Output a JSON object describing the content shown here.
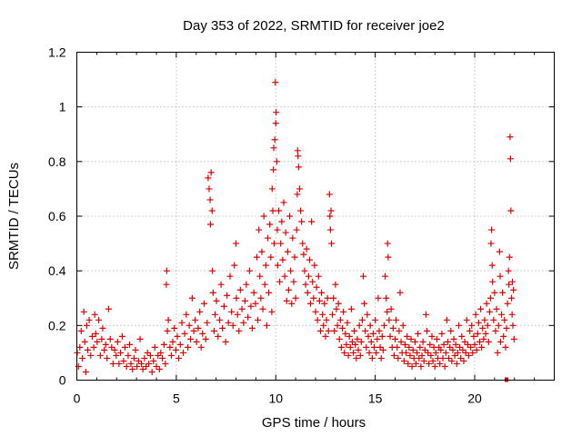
{
  "chart_data": {
    "type": "scatter",
    "title": "Day 353 of 2022, SRMTID for receiver joe2",
    "xlabel": "GPS time / hours",
    "ylabel": "SRMTID / TECUs",
    "xlim": [
      0,
      24
    ],
    "ylim": [
      0,
      1.2
    ],
    "xticks": [
      0,
      5,
      10,
      15,
      20
    ],
    "xtick_labels": [
      "0",
      "5",
      "10",
      "15",
      "20"
    ],
    "yticks": [
      0,
      0.2,
      0.4,
      0.6,
      0.8,
      1.0,
      1.2
    ],
    "ytick_labels": [
      "0",
      "0.2",
      "0.4",
      "0.6",
      "0.8",
      "1",
      "1.2"
    ],
    "grid": true,
    "marker": "+",
    "color": "#e00000",
    "points": [
      [
        0.02,
        0.1
      ],
      [
        0.08,
        0.05
      ],
      [
        0.15,
        0.12
      ],
      [
        0.22,
        0.18
      ],
      [
        0.28,
        0.08
      ],
      [
        0.35,
        0.25
      ],
      [
        0.4,
        0.14
      ],
      [
        0.45,
        0.03
      ],
      [
        0.5,
        0.2
      ],
      [
        0.55,
        0.11
      ],
      [
        0.62,
        0.22
      ],
      [
        0.7,
        0.09
      ],
      [
        0.78,
        0.16
      ],
      [
        0.85,
        0.12
      ],
      [
        0.9,
        0.24
      ],
      [
        0.95,
        0.17
      ],
      [
        1.02,
        0.14
      ],
      [
        1.1,
        0.22
      ],
      [
        1.18,
        0.09
      ],
      [
        1.25,
        0.15
      ],
      [
        1.3,
        0.19
      ],
      [
        1.38,
        0.11
      ],
      [
        1.45,
        0.13
      ],
      [
        1.52,
        0.08
      ],
      [
        1.6,
        0.26
      ],
      [
        1.68,
        0.15
      ],
      [
        1.75,
        0.12
      ],
      [
        1.82,
        0.06
      ],
      [
        1.9,
        0.11
      ],
      [
        1.98,
        0.09
      ],
      [
        2.05,
        0.14
      ],
      [
        2.12,
        0.06
      ],
      [
        2.2,
        0.1
      ],
      [
        2.28,
        0.16
      ],
      [
        2.35,
        0.07
      ],
      [
        2.42,
        0.12
      ],
      [
        2.5,
        0.05
      ],
      [
        2.58,
        0.09
      ],
      [
        2.65,
        0.13
      ],
      [
        2.72,
        0.06
      ],
      [
        2.8,
        0.04
      ],
      [
        2.88,
        0.08
      ],
      [
        2.95,
        0.11
      ],
      [
        3.02,
        0.05
      ],
      [
        3.1,
        0.07
      ],
      [
        3.18,
        0.15
      ],
      [
        3.25,
        0.06
      ],
      [
        3.32,
        0.04
      ],
      [
        3.4,
        0.08
      ],
      [
        3.48,
        0.05
      ],
      [
        3.55,
        0.1
      ],
      [
        3.62,
        0.06
      ],
      [
        3.7,
        0.09
      ],
      [
        3.78,
        0.03
      ],
      [
        3.85,
        0.07
      ],
      [
        3.92,
        0.12
      ],
      [
        4.0,
        0.05
      ],
      [
        4.08,
        0.09
      ],
      [
        4.15,
        0.04
      ],
      [
        4.22,
        0.1
      ],
      [
        4.3,
        0.08
      ],
      [
        4.38,
        0.13
      ],
      [
        4.45,
        0.06
      ],
      [
        4.5,
        0.35
      ],
      [
        4.52,
        0.4
      ],
      [
        4.55,
        0.18
      ],
      [
        4.6,
        0.22
      ],
      [
        4.68,
        0.12
      ],
      [
        4.75,
        0.09
      ],
      [
        4.82,
        0.14
      ],
      [
        4.9,
        0.19
      ],
      [
        4.98,
        0.11
      ],
      [
        5.05,
        0.16
      ],
      [
        5.12,
        0.08
      ],
      [
        5.2,
        0.13
      ],
      [
        5.28,
        0.21
      ],
      [
        5.35,
        0.1
      ],
      [
        5.42,
        0.17
      ],
      [
        5.5,
        0.24
      ],
      [
        5.58,
        0.12
      ],
      [
        5.65,
        0.2
      ],
      [
        5.72,
        0.15
      ],
      [
        5.8,
        0.3
      ],
      [
        5.88,
        0.18
      ],
      [
        5.95,
        0.22
      ],
      [
        6.02,
        0.14
      ],
      [
        6.1,
        0.19
      ],
      [
        6.18,
        0.25
      ],
      [
        6.25,
        0.12
      ],
      [
        6.32,
        0.17
      ],
      [
        6.4,
        0.28
      ],
      [
        6.48,
        0.15
      ],
      [
        6.55,
        0.21
      ],
      [
        6.6,
        0.74
      ],
      [
        6.65,
        0.7
      ],
      [
        6.7,
        0.66
      ],
      [
        6.72,
        0.57
      ],
      [
        6.75,
        0.76
      ],
      [
        6.8,
        0.62
      ],
      [
        6.82,
        0.4
      ],
      [
        6.85,
        0.32
      ],
      [
        6.9,
        0.18
      ],
      [
        6.95,
        0.24
      ],
      [
        7.02,
        0.29
      ],
      [
        7.1,
        0.16
      ],
      [
        7.18,
        0.22
      ],
      [
        7.25,
        0.35
      ],
      [
        7.32,
        0.19
      ],
      [
        7.4,
        0.27
      ],
      [
        7.48,
        0.14
      ],
      [
        7.55,
        0.31
      ],
      [
        7.62,
        0.21
      ],
      [
        7.7,
        0.38
      ],
      [
        7.78,
        0.25
      ],
      [
        7.85,
        0.2
      ],
      [
        7.92,
        0.42
      ],
      [
        8.0,
        0.5
      ],
      [
        8.02,
        0.3
      ],
      [
        8.08,
        0.24
      ],
      [
        8.15,
        0.18
      ],
      [
        8.22,
        0.33
      ],
      [
        8.3,
        0.26
      ],
      [
        8.38,
        0.21
      ],
      [
        8.45,
        0.29
      ],
      [
        8.52,
        0.35
      ],
      [
        8.6,
        0.23
      ],
      [
        8.68,
        0.4
      ],
      [
        8.75,
        0.27
      ],
      [
        8.82,
        0.19
      ],
      [
        8.9,
        0.32
      ],
      [
        8.98,
        0.28
      ],
      [
        9.05,
        0.45
      ],
      [
        9.1,
        0.22
      ],
      [
        9.15,
        0.55
      ],
      [
        9.2,
        0.38
      ],
      [
        9.25,
        0.3
      ],
      [
        9.3,
        0.47
      ],
      [
        9.35,
        0.26
      ],
      [
        9.4,
        0.6
      ],
      [
        9.45,
        0.35
      ],
      [
        9.5,
        0.42
      ],
      [
        9.55,
        0.2
      ],
      [
        9.6,
        0.52
      ],
      [
        9.65,
        0.32
      ],
      [
        9.7,
        0.57
      ],
      [
        9.75,
        0.45
      ],
      [
        9.8,
        0.25
      ],
      [
        9.82,
        0.7
      ],
      [
        9.85,
        0.62
      ],
      [
        9.88,
        0.77
      ],
      [
        9.9,
        0.85
      ],
      [
        9.92,
        0.5
      ],
      [
        9.95,
        0.88
      ],
      [
        9.98,
        1.09
      ],
      [
        10.0,
        0.94
      ],
      [
        10.02,
        0.98
      ],
      [
        10.05,
        0.8
      ],
      [
        10.08,
        0.55
      ],
      [
        10.1,
        0.42
      ],
      [
        10.15,
        0.62
      ],
      [
        10.2,
        0.36
      ],
      [
        10.25,
        0.5
      ],
      [
        10.3,
        0.58
      ],
      [
        10.35,
        0.44
      ],
      [
        10.4,
        0.65
      ],
      [
        10.45,
        0.38
      ],
      [
        10.5,
        0.54
      ],
      [
        10.55,
        0.29
      ],
      [
        10.6,
        0.47
      ],
      [
        10.65,
        0.33
      ],
      [
        10.7,
        0.6
      ],
      [
        10.75,
        0.4
      ],
      [
        10.8,
        0.28
      ],
      [
        10.85,
        0.52
      ],
      [
        10.9,
        0.36
      ],
      [
        10.95,
        0.45
      ],
      [
        11.0,
        0.3
      ],
      [
        11.05,
        0.55
      ],
      [
        11.08,
        0.68
      ],
      [
        11.1,
        0.84
      ],
      [
        11.12,
        0.82
      ],
      [
        11.15,
        0.78
      ],
      [
        11.2,
        0.7
      ],
      [
        11.25,
        0.62
      ],
      [
        11.3,
        0.58
      ],
      [
        11.35,
        0.5
      ],
      [
        11.4,
        0.46
      ],
      [
        11.45,
        0.4
      ],
      [
        11.5,
        0.35
      ],
      [
        11.55,
        0.48
      ],
      [
        11.6,
        0.32
      ],
      [
        11.65,
        0.38
      ],
      [
        11.7,
        0.44
      ],
      [
        11.75,
        0.28
      ],
      [
        11.8,
        0.58
      ],
      [
        11.85,
        0.36
      ],
      [
        11.9,
        0.3
      ],
      [
        11.95,
        0.42
      ],
      [
        12.0,
        0.25
      ],
      [
        12.05,
        0.34
      ],
      [
        12.1,
        0.22
      ],
      [
        12.15,
        0.38
      ],
      [
        12.2,
        0.29
      ],
      [
        12.25,
        0.18
      ],
      [
        12.3,
        0.32
      ],
      [
        12.35,
        0.24
      ],
      [
        12.4,
        0.2
      ],
      [
        12.45,
        0.28
      ],
      [
        12.5,
        0.16
      ],
      [
        12.55,
        0.22
      ],
      [
        12.6,
        0.3
      ],
      [
        12.65,
        0.18
      ],
      [
        12.7,
        0.68
      ],
      [
        12.72,
        0.6
      ],
      [
        12.75,
        0.55
      ],
      [
        12.78,
        0.62
      ],
      [
        12.8,
        0.5
      ],
      [
        12.85,
        0.24
      ],
      [
        12.9,
        0.3
      ],
      [
        12.95,
        0.18
      ],
      [
        13.0,
        0.35
      ],
      [
        13.05,
        0.26
      ],
      [
        13.1,
        0.2
      ],
      [
        13.15,
        0.28
      ],
      [
        13.2,
        0.15
      ],
      [
        13.25,
        0.22
      ],
      [
        13.3,
        0.12
      ],
      [
        13.35,
        0.19
      ],
      [
        13.4,
        0.25
      ],
      [
        13.45,
        0.1
      ],
      [
        13.5,
        0.17
      ],
      [
        13.55,
        0.13
      ],
      [
        13.6,
        0.21
      ],
      [
        13.65,
        0.09
      ],
      [
        13.7,
        0.16
      ],
      [
        13.75,
        0.12
      ],
      [
        13.8,
        0.26
      ],
      [
        13.85,
        0.14
      ],
      [
        13.9,
        0.1
      ],
      [
        13.95,
        0.18
      ],
      [
        14.0,
        0.13
      ],
      [
        14.05,
        0.08
      ],
      [
        14.1,
        0.15
      ],
      [
        14.15,
        0.11
      ],
      [
        14.2,
        0.2
      ],
      [
        14.25,
        0.09
      ],
      [
        14.3,
        0.14
      ],
      [
        14.35,
        0.22
      ],
      [
        14.4,
        0.38
      ],
      [
        14.45,
        0.28
      ],
      [
        14.5,
        0.18
      ],
      [
        14.55,
        0.12
      ],
      [
        14.6,
        0.24
      ],
      [
        14.65,
        0.16
      ],
      [
        14.7,
        0.1
      ],
      [
        14.75,
        0.2
      ],
      [
        14.8,
        0.14
      ],
      [
        14.85,
        0.08
      ],
      [
        14.9,
        0.17
      ],
      [
        14.95,
        0.12
      ],
      [
        15.0,
        0.22
      ],
      [
        15.05,
        0.1
      ],
      [
        15.1,
        0.15
      ],
      [
        15.15,
        0.3
      ],
      [
        15.2,
        0.18
      ],
      [
        15.25,
        0.12
      ],
      [
        15.3,
        0.08
      ],
      [
        15.35,
        0.16
      ],
      [
        15.4,
        0.11
      ],
      [
        15.45,
        0.2
      ],
      [
        15.5,
        0.38
      ],
      [
        15.55,
        0.3
      ],
      [
        15.6,
        0.25
      ],
      [
        15.62,
        0.5
      ],
      [
        15.65,
        0.45
      ],
      [
        15.7,
        0.22
      ],
      [
        15.75,
        0.16
      ],
      [
        15.8,
        0.26
      ],
      [
        15.85,
        0.12
      ],
      [
        15.9,
        0.19
      ],
      [
        15.95,
        0.09
      ],
      [
        16.0,
        0.15
      ],
      [
        16.05,
        0.22
      ],
      [
        16.1,
        0.12
      ],
      [
        16.15,
        0.08
      ],
      [
        16.2,
        0.18
      ],
      [
        16.25,
        0.32
      ],
      [
        16.3,
        0.14
      ],
      [
        16.35,
        0.1
      ],
      [
        16.4,
        0.2
      ],
      [
        16.45,
        0.07
      ],
      [
        16.5,
        0.13
      ],
      [
        16.55,
        0.1
      ],
      [
        16.6,
        0.16
      ],
      [
        16.65,
        0.06
      ],
      [
        16.7,
        0.12
      ],
      [
        16.75,
        0.09
      ],
      [
        16.8,
        0.15
      ],
      [
        16.85,
        0.05
      ],
      [
        16.9,
        0.11
      ],
      [
        16.95,
        0.08
      ],
      [
        17.0,
        0.14
      ],
      [
        17.05,
        0.06
      ],
      [
        17.1,
        0.1
      ],
      [
        17.15,
        0.17
      ],
      [
        17.2,
        0.08
      ],
      [
        17.25,
        0.12
      ],
      [
        17.3,
        0.05
      ],
      [
        17.35,
        0.09
      ],
      [
        17.4,
        0.14
      ],
      [
        17.45,
        0.07
      ],
      [
        17.5,
        0.11
      ],
      [
        17.55,
        0.24
      ],
      [
        17.6,
        0.18
      ],
      [
        17.65,
        0.1
      ],
      [
        17.7,
        0.06
      ],
      [
        17.75,
        0.13
      ],
      [
        17.8,
        0.09
      ],
      [
        17.85,
        0.16
      ],
      [
        17.9,
        0.07
      ],
      [
        17.95,
        0.12
      ],
      [
        18.0,
        0.05
      ],
      [
        18.05,
        0.1
      ],
      [
        18.1,
        0.15
      ],
      [
        18.15,
        0.08
      ],
      [
        18.2,
        0.12
      ],
      [
        18.25,
        0.06
      ],
      [
        18.3,
        0.11
      ],
      [
        18.35,
        0.17
      ],
      [
        18.4,
        0.08
      ],
      [
        18.45,
        0.13
      ],
      [
        18.5,
        0.05
      ],
      [
        18.55,
        0.1
      ],
      [
        18.6,
        0.22
      ],
      [
        18.65,
        0.14
      ],
      [
        18.7,
        0.08
      ],
      [
        18.75,
        0.12
      ],
      [
        18.8,
        0.18
      ],
      [
        18.85,
        0.07
      ],
      [
        18.9,
        0.11
      ],
      [
        18.95,
        0.15
      ],
      [
        19.0,
        0.09
      ],
      [
        19.05,
        0.13
      ],
      [
        19.1,
        0.06
      ],
      [
        19.15,
        0.1
      ],
      [
        19.2,
        0.2
      ],
      [
        19.25,
        0.12
      ],
      [
        19.3,
        0.08
      ],
      [
        19.35,
        0.16
      ],
      [
        19.4,
        0.11
      ],
      [
        19.45,
        0.07
      ],
      [
        19.5,
        0.14
      ],
      [
        19.55,
        0.1
      ],
      [
        19.6,
        0.22
      ],
      [
        19.65,
        0.13
      ],
      [
        19.7,
        0.09
      ],
      [
        19.75,
        0.18
      ],
      [
        19.8,
        0.12
      ],
      [
        19.85,
        0.2
      ],
      [
        19.9,
        0.1
      ],
      [
        19.95,
        0.16
      ],
      [
        20.0,
        0.13
      ],
      [
        20.05,
        0.24
      ],
      [
        20.1,
        0.11
      ],
      [
        20.15,
        0.17
      ],
      [
        20.2,
        0.21
      ],
      [
        20.25,
        0.14
      ],
      [
        20.3,
        0.26
      ],
      [
        20.35,
        0.12
      ],
      [
        20.4,
        0.19
      ],
      [
        20.45,
        0.15
      ],
      [
        20.5,
        0.22
      ],
      [
        20.55,
        0.17
      ],
      [
        20.6,
        0.28
      ],
      [
        20.65,
        0.2
      ],
      [
        20.7,
        0.14
      ],
      [
        20.75,
        0.25
      ],
      [
        20.8,
        0.3
      ],
      [
        20.82,
        0.5
      ],
      [
        20.85,
        0.55
      ],
      [
        20.88,
        0.42
      ],
      [
        20.9,
        0.36
      ],
      [
        20.95,
        0.22
      ],
      [
        21.0,
        0.32
      ],
      [
        21.05,
        0.18
      ],
      [
        21.1,
        0.26
      ],
      [
        21.15,
        0.1
      ],
      [
        21.2,
        0.2
      ],
      [
        21.25,
        0.47
      ],
      [
        21.28,
        0.38
      ],
      [
        21.3,
        0.14
      ],
      [
        21.35,
        0.24
      ],
      [
        21.4,
        0.32
      ],
      [
        21.45,
        0.16
      ],
      [
        21.5,
        0.22
      ],
      [
        21.55,
        0.12
      ],
      [
        21.6,
        0.19
      ],
      [
        21.65,
        0.28
      ],
      [
        21.7,
        0.4
      ],
      [
        21.72,
        0.35
      ],
      [
        21.75,
        0.45
      ],
      [
        21.78,
        0.89
      ],
      [
        21.8,
        0.81
      ],
      [
        21.82,
        0.62
      ],
      [
        21.85,
        0.3
      ],
      [
        21.88,
        0.24
      ],
      [
        21.9,
        0.36
      ],
      [
        21.92,
        0.2
      ],
      [
        21.95,
        0.33
      ],
      [
        21.98,
        0.15
      ]
    ],
    "square_points": [
      [
        21.6,
        0.0
      ]
    ]
  }
}
